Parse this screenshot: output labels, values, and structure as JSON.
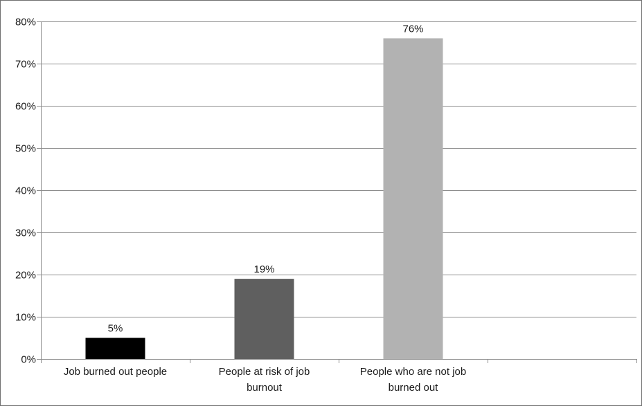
{
  "chart_data": {
    "type": "bar",
    "title": "",
    "xlabel": "",
    "ylabel": "",
    "categories": [
      [
        "Job burned out people"
      ],
      [
        "People at risk of job",
        "burnout"
      ],
      [
        "People who are not job",
        "burned out"
      ]
    ],
    "values": [
      5,
      19,
      76
    ],
    "data_labels": [
      "5%",
      "19%",
      "76%"
    ],
    "colors": [
      "#000000",
      "#5f5f5f",
      "#b2b2b2"
    ],
    "ylim": [
      0,
      80
    ],
    "y_ticks": [
      0,
      10,
      20,
      30,
      40,
      50,
      60,
      70,
      80
    ],
    "y_tick_labels": [
      "0%",
      "10%",
      "20%",
      "30%",
      "40%",
      "50%",
      "60%",
      "70%",
      "80%"
    ],
    "category_slots": 4,
    "grid": true,
    "legend": "none"
  }
}
